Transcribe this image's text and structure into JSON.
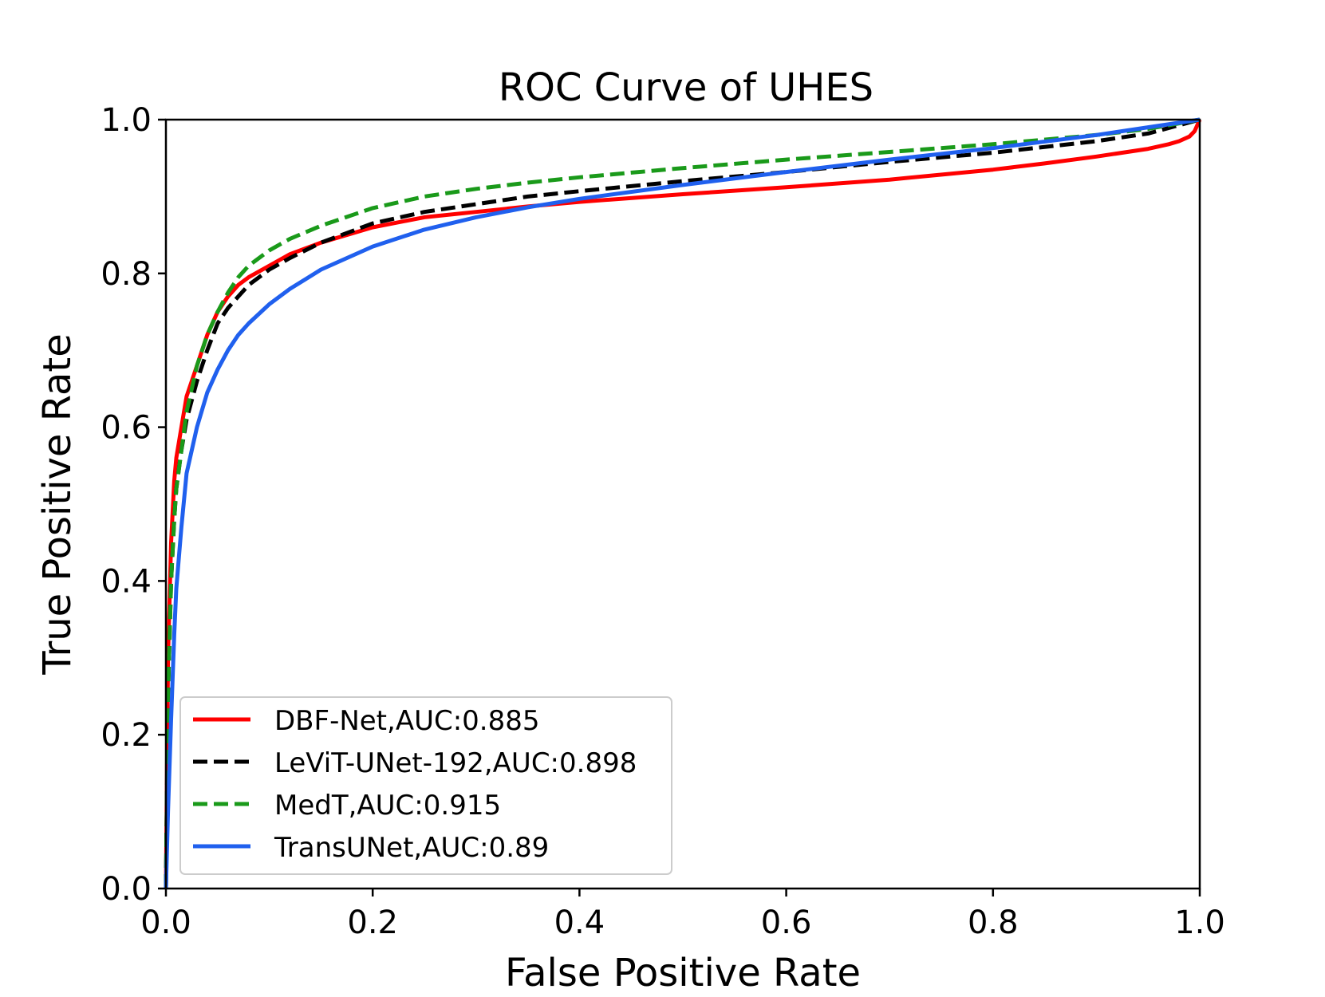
{
  "chart_data": {
    "type": "line",
    "title": "ROC Curve of UHES",
    "xlabel": "False Positive Rate",
    "ylabel": "True Positive Rate",
    "xlim": [
      0.0,
      1.0
    ],
    "ylim": [
      0.0,
      1.0
    ],
    "xticks": [
      "0.0",
      "0.2",
      "0.4",
      "0.6",
      "0.8",
      "1.0"
    ],
    "yticks": [
      "0.0",
      "0.2",
      "0.4",
      "0.6",
      "0.8",
      "1.0"
    ],
    "xtick_values": [
      0.0,
      0.2,
      0.4,
      0.6,
      0.8,
      1.0
    ],
    "ytick_values": [
      0.0,
      0.2,
      0.4,
      0.6,
      0.8,
      1.0
    ],
    "grid": false,
    "legend_position": "lower-left",
    "series": [
      {
        "name": "DBF-Net,AUC:0.885",
        "color": "#ff0000",
        "dash": "solid",
        "x": [
          0.0,
          0.002,
          0.005,
          0.008,
          0.01,
          0.015,
          0.02,
          0.03,
          0.04,
          0.05,
          0.06,
          0.07,
          0.08,
          0.1,
          0.12,
          0.15,
          0.2,
          0.25,
          0.3,
          0.35,
          0.4,
          0.5,
          0.6,
          0.7,
          0.8,
          0.85,
          0.9,
          0.93,
          0.95,
          0.97,
          0.98,
          0.99,
          0.995,
          1.0
        ],
        "y": [
          0.0,
          0.3,
          0.45,
          0.53,
          0.56,
          0.6,
          0.64,
          0.68,
          0.72,
          0.75,
          0.77,
          0.785,
          0.795,
          0.81,
          0.825,
          0.84,
          0.86,
          0.873,
          0.88,
          0.887,
          0.893,
          0.903,
          0.912,
          0.922,
          0.935,
          0.943,
          0.952,
          0.958,
          0.962,
          0.968,
          0.972,
          0.978,
          0.985,
          1.0
        ]
      },
      {
        "name": "LeViT-UNet-192,AUC:0.898",
        "color": "#000000",
        "dash": "dashed",
        "x": [
          0.0,
          0.002,
          0.005,
          0.008,
          0.01,
          0.015,
          0.02,
          0.03,
          0.04,
          0.05,
          0.06,
          0.07,
          0.08,
          0.1,
          0.12,
          0.15,
          0.2,
          0.25,
          0.3,
          0.35,
          0.4,
          0.5,
          0.6,
          0.7,
          0.8,
          0.9,
          0.95,
          1.0
        ],
        "y": [
          0.0,
          0.25,
          0.4,
          0.48,
          0.52,
          0.57,
          0.61,
          0.66,
          0.7,
          0.735,
          0.755,
          0.77,
          0.785,
          0.805,
          0.82,
          0.84,
          0.865,
          0.88,
          0.89,
          0.9,
          0.907,
          0.92,
          0.932,
          0.945,
          0.957,
          0.972,
          0.982,
          1.0
        ]
      },
      {
        "name": "MedT,AUC:0.915",
        "color": "#1a9a1a",
        "dash": "dashed",
        "x": [
          0.0,
          0.002,
          0.005,
          0.008,
          0.01,
          0.015,
          0.02,
          0.03,
          0.04,
          0.05,
          0.06,
          0.07,
          0.08,
          0.1,
          0.12,
          0.15,
          0.2,
          0.25,
          0.3,
          0.35,
          0.4,
          0.5,
          0.6,
          0.7,
          0.8,
          0.9,
          0.95,
          1.0
        ],
        "y": [
          0.0,
          0.25,
          0.4,
          0.48,
          0.52,
          0.57,
          0.62,
          0.68,
          0.72,
          0.75,
          0.775,
          0.795,
          0.81,
          0.83,
          0.845,
          0.862,
          0.885,
          0.9,
          0.91,
          0.918,
          0.925,
          0.937,
          0.948,
          0.958,
          0.968,
          0.98,
          0.988,
          1.0
        ]
      },
      {
        "name": "TransUNet,AUC:0.89",
        "color": "#2060ee",
        "dash": "solid",
        "x": [
          0.0,
          0.002,
          0.005,
          0.008,
          0.01,
          0.015,
          0.02,
          0.03,
          0.04,
          0.05,
          0.06,
          0.07,
          0.08,
          0.1,
          0.12,
          0.15,
          0.2,
          0.25,
          0.3,
          0.35,
          0.4,
          0.5,
          0.6,
          0.7,
          0.8,
          0.9,
          0.95,
          1.0
        ],
        "y": [
          0.0,
          0.1,
          0.22,
          0.33,
          0.39,
          0.47,
          0.54,
          0.6,
          0.645,
          0.675,
          0.7,
          0.72,
          0.735,
          0.76,
          0.78,
          0.805,
          0.835,
          0.857,
          0.873,
          0.886,
          0.897,
          0.915,
          0.932,
          0.948,
          0.963,
          0.98,
          0.99,
          1.0
        ]
      }
    ]
  }
}
